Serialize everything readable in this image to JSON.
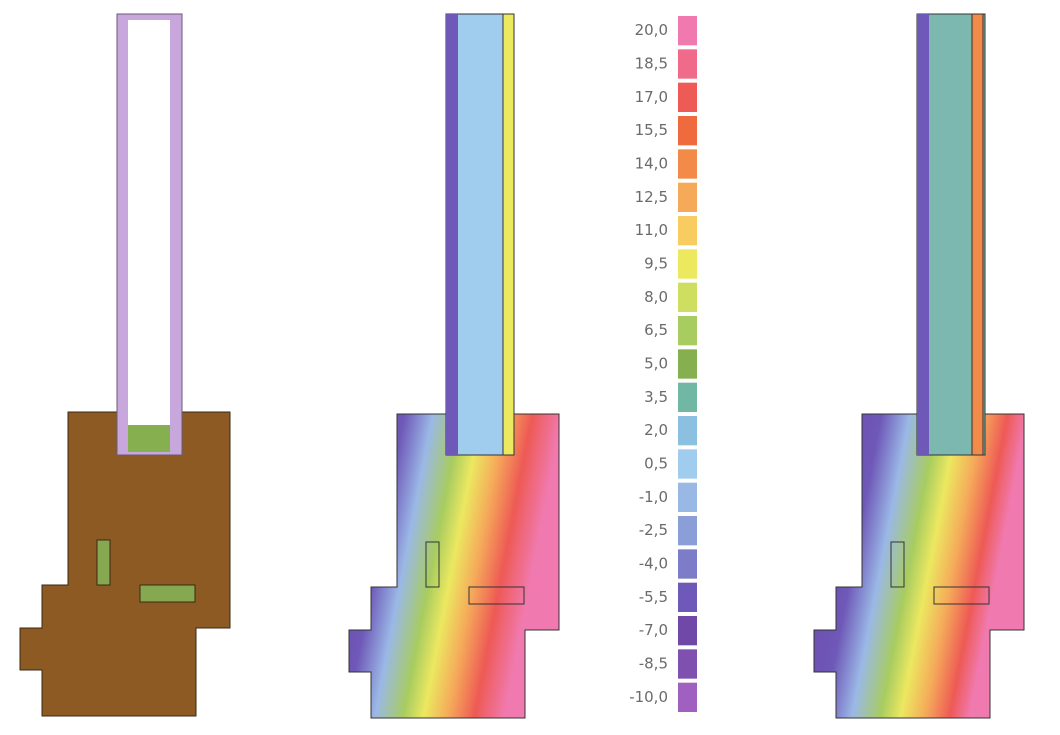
{
  "legend": {
    "entries": [
      {
        "label": "20,0",
        "color": "#f07ab0"
      },
      {
        "label": "18,5",
        "color": "#f06a8a"
      },
      {
        "label": "17,0",
        "color": "#ee5a55"
      },
      {
        "label": "15,5",
        "color": "#f06a40"
      },
      {
        "label": "14,0",
        "color": "#f28a4a"
      },
      {
        "label": "12,5",
        "color": "#f5aa5a"
      },
      {
        "label": "11,0",
        "color": "#f8cc60"
      },
      {
        "label": "9,5",
        "color": "#ece860"
      },
      {
        "label": "8,0",
        "color": "#cede60"
      },
      {
        "label": "6,5",
        "color": "#a8cc60"
      },
      {
        "label": "5,0",
        "color": "#86b050"
      },
      {
        "label": "3,5",
        "color": "#70b8a4"
      },
      {
        "label": "2,0",
        "color": "#8cc0e0"
      },
      {
        "label": "0,5",
        "color": "#a0ccee"
      },
      {
        "label": "-1,0",
        "color": "#9ab8e6"
      },
      {
        "label": "-2,5",
        "color": "#8c9ed8"
      },
      {
        "label": "-4,0",
        "color": "#7c7cc8"
      },
      {
        "label": "-5,5",
        "color": "#6e58b8"
      },
      {
        "label": "-7,0",
        "color": "#7048a8"
      },
      {
        "label": "-8,5",
        "color": "#8050b0"
      },
      {
        "label": "-10,0",
        "color": "#a060c0"
      }
    ]
  }
}
